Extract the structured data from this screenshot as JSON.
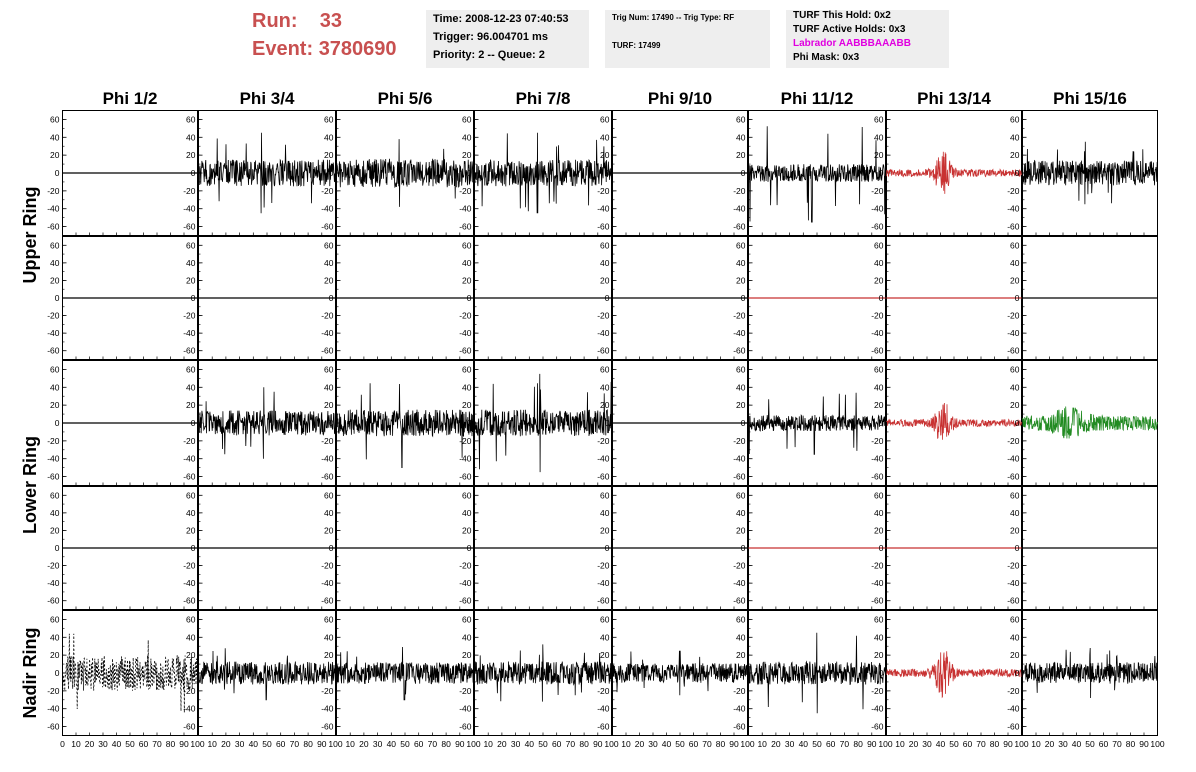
{
  "run": {
    "run_label": "Run:",
    "run_value": "33",
    "event_label": "Event:",
    "event_value": "3780690"
  },
  "info1": {
    "line1": "Time: 2008-12-23 07:40:53",
    "line2": "Trigger: 96.004701 ms",
    "line3": "Priority: 2 -- Queue: 2"
  },
  "info2": {
    "line1": "Trig Num: 17490 -- Trig Type: RF",
    "line2": "TURF: 17499"
  },
  "info3": {
    "line1": "TURF This Hold: 0x2",
    "line2": "TURF Active Holds: 0x3",
    "line3": "Labrador AABBBAAABB",
    "line4": "Phi Mask: 0x3"
  },
  "colors": {
    "run_text": "#c85050",
    "labrador_text": "#e000e0",
    "trace_default": "#000000",
    "trace_red": "#c83232",
    "trace_green": "#228b22",
    "panel_bg": "#eeeeee"
  },
  "chart_data": {
    "type": "line",
    "column_titles": [
      "Phi 1/2",
      "Phi 3/4",
      "Phi 5/6",
      "Phi 7/8",
      "Phi 9/10",
      "Phi 11/12",
      "Phi 13/14",
      "Phi 15/16"
    ],
    "ring_labels": [
      "Upper Ring",
      "Lower Ring",
      "Nadir Ring"
    ],
    "xlim": [
      0,
      100
    ],
    "ylim": [
      -70,
      70
    ],
    "y_ticks": [
      -60,
      -40,
      -20,
      0,
      20,
      40,
      60
    ],
    "x_tick_labels": [
      "0",
      "10",
      "20",
      "30",
      "40",
      "50",
      "60",
      "70",
      "80",
      "90",
      "100"
    ],
    "panel_rows": [
      "Upper Ring",
      "Upper Ring",
      "Lower Ring",
      "Lower Ring",
      "Nadir Ring"
    ],
    "panels": [
      [
        {
          "style": "flat",
          "color": "black"
        },
        {
          "style": "noise",
          "amp": 15,
          "spike": 45,
          "color": "black"
        },
        {
          "style": "noise",
          "amp": 16,
          "spike": 38,
          "color": "black"
        },
        {
          "style": "noise",
          "amp": 15,
          "spike": 45,
          "color": "black"
        },
        {
          "style": "flat",
          "color": "black"
        },
        {
          "style": "noise",
          "amp": 10,
          "spike": 55,
          "color": "black"
        },
        {
          "style": "burst",
          "amp": 9,
          "spike": 75,
          "color": "red"
        },
        {
          "style": "noise",
          "amp": 14,
          "spike": 35,
          "color": "black"
        }
      ],
      [
        {
          "style": "flat",
          "color": "black"
        },
        {
          "style": "flat",
          "color": "black"
        },
        {
          "style": "flat",
          "color": "black"
        },
        {
          "style": "flat",
          "color": "black"
        },
        {
          "style": "flat",
          "color": "black"
        },
        {
          "style": "flat",
          "color": "red"
        },
        {
          "style": "flat",
          "color": "red"
        },
        {
          "style": "flat",
          "color": "black"
        }
      ],
      [
        {
          "style": "flat",
          "color": "black"
        },
        {
          "style": "noise",
          "amp": 14,
          "spike": 40,
          "color": "black"
        },
        {
          "style": "noise",
          "amp": 15,
          "spike": 50,
          "color": "black"
        },
        {
          "style": "noise",
          "amp": 15,
          "spike": 55,
          "color": "black"
        },
        {
          "style": "flat",
          "color": "black"
        },
        {
          "style": "noise",
          "amp": 9,
          "spike": 35,
          "color": "black"
        },
        {
          "style": "burst",
          "amp": 9,
          "spike": 60,
          "color": "red"
        },
        {
          "style": "burst2",
          "amp": 12,
          "spike": 35,
          "color": "green"
        }
      ],
      [
        {
          "style": "flat",
          "color": "black"
        },
        {
          "style": "flat",
          "color": "black"
        },
        {
          "style": "flat",
          "color": "black"
        },
        {
          "style": "flat",
          "color": "black"
        },
        {
          "style": "flat",
          "color": "black"
        },
        {
          "style": "flat",
          "color": "red"
        },
        {
          "style": "flat",
          "color": "red"
        },
        {
          "style": "flat",
          "color": "black"
        }
      ],
      [
        {
          "style": "dashed",
          "amp": 20,
          "spike": 45,
          "color": "black"
        },
        {
          "style": "noise",
          "amp": 13,
          "spike": 30,
          "color": "black"
        },
        {
          "style": "noise",
          "amp": 12,
          "spike": 30,
          "color": "black"
        },
        {
          "style": "noise",
          "amp": 13,
          "spike": 32,
          "color": "black"
        },
        {
          "style": "noise",
          "amp": 11,
          "spike": 25,
          "color": "black"
        },
        {
          "style": "noise",
          "amp": 13,
          "spike": 45,
          "color": "black"
        },
        {
          "style": "burst",
          "amp": 10,
          "spike": 60,
          "color": "red"
        },
        {
          "style": "noise",
          "amp": 12,
          "spike": 28,
          "color": "black"
        }
      ]
    ]
  }
}
